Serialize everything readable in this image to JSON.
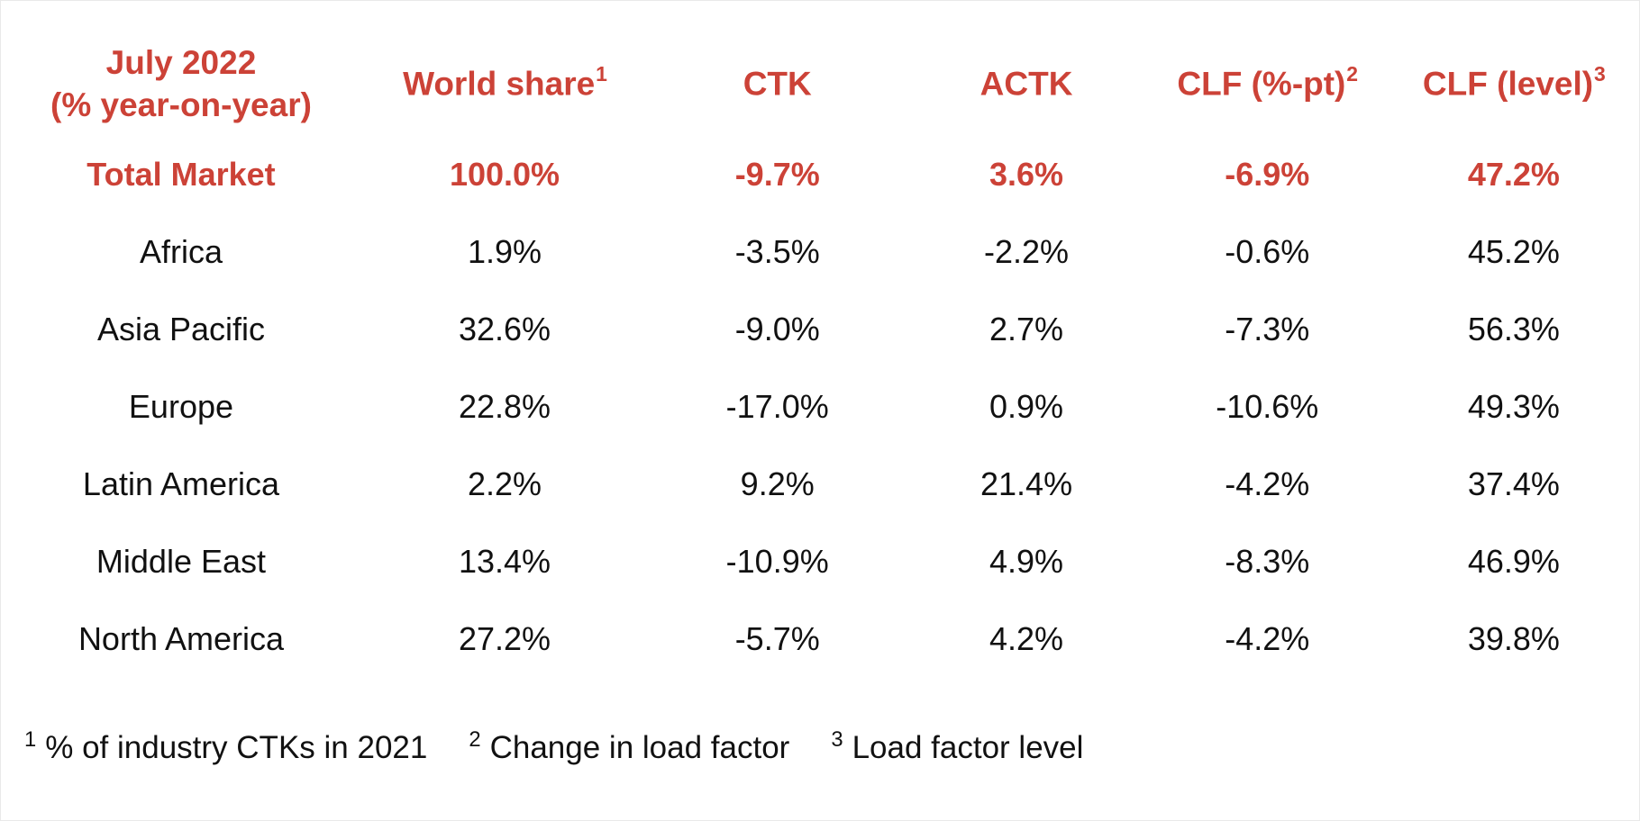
{
  "accent_color": "#CC4237",
  "text_color": "#111111",
  "header": {
    "title_line1": "July 2022",
    "title_line2": "(% year-on-year)",
    "columns": [
      {
        "label": "World share",
        "sup": "1"
      },
      {
        "label": "CTK",
        "sup": ""
      },
      {
        "label": "ACTK",
        "sup": ""
      },
      {
        "label": "CLF (%-pt)",
        "sup": "2"
      },
      {
        "label": "CLF (level)",
        "sup": "3"
      }
    ]
  },
  "table": {
    "rows": [
      {
        "region": "Total Market",
        "world_share": "100.0%",
        "ctk": "-9.7%",
        "actk": "3.6%",
        "clf_pt": "-6.9%",
        "clf_level": "47.2%"
      },
      {
        "region": "Africa",
        "world_share": "1.9%",
        "ctk": "-3.5%",
        "actk": "-2.2%",
        "clf_pt": "-0.6%",
        "clf_level": "45.2%"
      },
      {
        "region": "Asia Pacific",
        "world_share": "32.6%",
        "ctk": "-9.0%",
        "actk": "2.7%",
        "clf_pt": "-7.3%",
        "clf_level": "56.3%"
      },
      {
        "region": "Europe",
        "world_share": "22.8%",
        "ctk": "-17.0%",
        "actk": "0.9%",
        "clf_pt": "-10.6%",
        "clf_level": "49.3%"
      },
      {
        "region": "Latin America",
        "world_share": "2.2%",
        "ctk": "9.2%",
        "actk": "21.4%",
        "clf_pt": "-4.2%",
        "clf_level": "37.4%"
      },
      {
        "region": "Middle East",
        "world_share": "13.4%",
        "ctk": "-10.9%",
        "actk": "4.9%",
        "clf_pt": "-8.3%",
        "clf_level": "46.9%"
      },
      {
        "region": "North America",
        "world_share": "27.2%",
        "ctk": "-5.7%",
        "actk": "4.2%",
        "clf_pt": "-4.2%",
        "clf_level": "39.8%"
      }
    ]
  },
  "footnotes": [
    {
      "sup": "1",
      "text": "% of industry CTKs in 2021"
    },
    {
      "sup": "2",
      "text": "Change in load factor"
    },
    {
      "sup": "3",
      "text": "Load factor level"
    }
  ],
  "chart_data": {
    "type": "table",
    "title": "July 2022 (% year-on-year)",
    "columns": [
      "World share",
      "CTK",
      "ACTK",
      "CLF (%-pt)",
      "CLF (level)"
    ],
    "units": "%",
    "rows": [
      {
        "region": "Total Market",
        "world_share": 100.0,
        "ctk": -9.7,
        "actk": 3.6,
        "clf_pt": -6.9,
        "clf_level": 47.2
      },
      {
        "region": "Africa",
        "world_share": 1.9,
        "ctk": -3.5,
        "actk": -2.2,
        "clf_pt": -0.6,
        "clf_level": 45.2
      },
      {
        "region": "Asia Pacific",
        "world_share": 32.6,
        "ctk": -9.0,
        "actk": 2.7,
        "clf_pt": -7.3,
        "clf_level": 56.3
      },
      {
        "region": "Europe",
        "world_share": 22.8,
        "ctk": -17.0,
        "actk": 0.9,
        "clf_pt": -10.6,
        "clf_level": 49.3
      },
      {
        "region": "Latin America",
        "world_share": 2.2,
        "ctk": 9.2,
        "actk": 21.4,
        "clf_pt": -4.2,
        "clf_level": 37.4
      },
      {
        "region": "Middle East",
        "world_share": 13.4,
        "ctk": -10.9,
        "actk": 4.9,
        "clf_pt": -8.3,
        "clf_level": 46.9
      },
      {
        "region": "North America",
        "world_share": 27.2,
        "ctk": -5.7,
        "actk": 4.2,
        "clf_pt": -4.2,
        "clf_level": 39.8
      }
    ],
    "footnotes": [
      "1: % of industry CTKs in 2021",
      "2: Change in load factor",
      "3: Load factor level"
    ]
  }
}
